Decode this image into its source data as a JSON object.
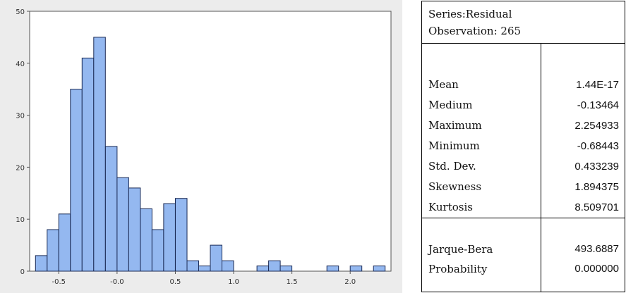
{
  "chart_data": {
    "type": "bar",
    "bin_width": 0.1,
    "bins": [
      {
        "x": -0.65,
        "count": 3
      },
      {
        "x": -0.55,
        "count": 8
      },
      {
        "x": -0.45,
        "count": 11
      },
      {
        "x": -0.35,
        "count": 35
      },
      {
        "x": -0.25,
        "count": 41
      },
      {
        "x": -0.15,
        "count": 45
      },
      {
        "x": -0.05,
        "count": 24
      },
      {
        "x": 0.05,
        "count": 18
      },
      {
        "x": 0.15,
        "count": 16
      },
      {
        "x": 0.25,
        "count": 12
      },
      {
        "x": 0.35,
        "count": 8
      },
      {
        "x": 0.45,
        "count": 13
      },
      {
        "x": 0.55,
        "count": 14
      },
      {
        "x": 0.65,
        "count": 2
      },
      {
        "x": 0.75,
        "count": 1
      },
      {
        "x": 0.85,
        "count": 5
      },
      {
        "x": 0.95,
        "count": 2
      },
      {
        "x": 1.25,
        "count": 1
      },
      {
        "x": 1.35,
        "count": 2
      },
      {
        "x": 1.45,
        "count": 1
      },
      {
        "x": 1.85,
        "count": 1
      },
      {
        "x": 2.05,
        "count": 1
      },
      {
        "x": 2.25,
        "count": 1
      }
    ],
    "xlim": [
      -0.75,
      2.35
    ],
    "ylim": [
      0,
      50
    ],
    "xticks": [
      -0.5,
      0.0,
      0.5,
      1.0,
      1.5,
      2.0
    ],
    "xtick_labels": [
      "-0.5",
      "-0.0",
      "0.5",
      "1.0",
      "1.5",
      "2.0"
    ],
    "yticks": [
      0,
      10,
      20,
      30,
      40,
      50
    ],
    "ytick_labels": [
      "0",
      "10",
      "20",
      "30",
      "40",
      "50"
    ],
    "grid": false,
    "bar_color": "#94b8f0",
    "bar_edge_color": "#1a2a55",
    "panel_bg": "#ececec"
  },
  "stats": {
    "series_label": "Series:Residual",
    "observation_label": "Observation: 265",
    "rows": [
      {
        "label": "Mean",
        "value": "1.44E-17"
      },
      {
        "label": "Medium",
        "value": "-0.13464"
      },
      {
        "label": "Maximum",
        "value": "2.254933"
      },
      {
        "label": "Minimum",
        "value": "-0.68443"
      },
      {
        "label": "Std. Dev.",
        "value": "0.433239"
      },
      {
        "label": "Skewness",
        "value": "1.894375"
      },
      {
        "label": "Kurtosis",
        "value": "8.509701"
      }
    ],
    "test_rows": [
      {
        "label": "Jarque-Bera",
        "value": "493.6887"
      },
      {
        "label": "Probability",
        "value": "0.000000"
      }
    ]
  }
}
